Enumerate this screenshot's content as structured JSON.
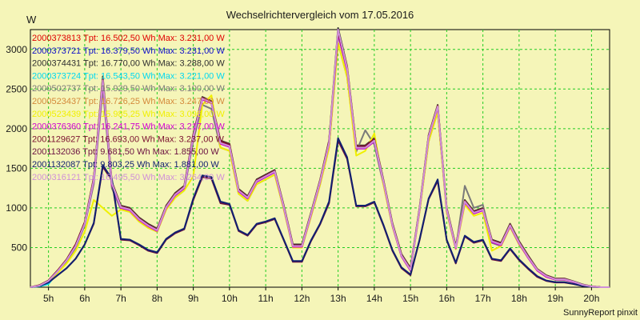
{
  "chart_data": {
    "type": "line",
    "title": "Wechselrichtervergleich vom 17.05.2016",
    "ylabel": "W",
    "xlabel": "",
    "ylim": [
      0,
      3250
    ],
    "xlim": [
      4.5,
      20.5
    ],
    "yticks": [
      500,
      1000,
      1500,
      2000,
      2500,
      3000
    ],
    "xticks": [
      {
        "value": 5,
        "label": "5h"
      },
      {
        "value": 6,
        "label": "6h"
      },
      {
        "value": 7,
        "label": "7h"
      },
      {
        "value": 8,
        "label": "8h"
      },
      {
        "value": 9,
        "label": "9h"
      },
      {
        "value": 10,
        "label": "10h"
      },
      {
        "value": 11,
        "label": "11h"
      },
      {
        "value": 12,
        "label": "12h"
      },
      {
        "value": 13,
        "label": "13h"
      },
      {
        "value": 14,
        "label": "14h"
      },
      {
        "value": 15,
        "label": "15h"
      },
      {
        "value": 16,
        "label": "16h"
      },
      {
        "value": 17,
        "label": "17h"
      },
      {
        "value": 18,
        "label": "18h"
      },
      {
        "value": 19,
        "label": "19h"
      },
      {
        "value": 20,
        "label": "20h"
      }
    ],
    "grid": true,
    "legend_position": "top-left",
    "footer": "SunnyReport pinxit",
    "x": [
      4.5,
      4.75,
      5.0,
      5.25,
      5.5,
      5.75,
      6.0,
      6.25,
      6.5,
      6.75,
      7.0,
      7.25,
      7.5,
      7.75,
      8.0,
      8.25,
      8.5,
      8.75,
      9.0,
      9.25,
      9.5,
      9.75,
      10.0,
      10.25,
      10.5,
      10.75,
      11.0,
      11.25,
      11.5,
      11.75,
      12.0,
      12.25,
      12.5,
      12.75,
      13.0,
      13.25,
      13.5,
      13.75,
      14.0,
      14.25,
      14.5,
      14.75,
      15.0,
      15.25,
      15.5,
      15.75,
      16.0,
      16.25,
      16.5,
      16.75,
      17.0,
      17.25,
      17.5,
      17.75,
      18.0,
      18.25,
      18.5,
      18.75,
      19.0,
      19.25,
      19.5,
      19.75,
      20.0,
      20.25,
      20.5
    ],
    "series": [
      {
        "name": "2000373813 Tpt: 16.502,50 Wh Max: 3.231,00 W",
        "color": "#e00000",
        "values": [
          0,
          20,
          80,
          200,
          340,
          520,
          800,
          1350,
          2600,
          1300,
          1010,
          980,
          860,
          780,
          720,
          1010,
          1170,
          1260,
          1900,
          2380,
          2330,
          1820,
          1780,
          1220,
          1130,
          1340,
          1400,
          1460,
          1010,
          520,
          520,
          920,
          1330,
          1820,
          3200,
          2750,
          1760,
          1760,
          1850,
          1340,
          790,
          400,
          220,
          980,
          1900,
          2280,
          980,
          500,
          1080,
          940,
          980,
          580,
          540,
          780,
          560,
          380,
          220,
          140,
          100,
          100,
          70,
          30,
          10,
          0,
          0
        ]
      },
      {
        "name": "2000373721 Tpt: 16.379,50 Wh Max: 3.231,00 W",
        "color": "#1010c8",
        "values": [
          0,
          20,
          80,
          200,
          340,
          520,
          800,
          1340,
          2580,
          1290,
          1000,
          970,
          850,
          770,
          710,
          1000,
          1160,
          1250,
          1890,
          2370,
          2320,
          1810,
          1770,
          1210,
          1120,
          1330,
          1390,
          1450,
          1000,
          510,
          510,
          910,
          1320,
          1810,
          3190,
          2740,
          1750,
          1750,
          1840,
          1330,
          780,
          390,
          210,
          970,
          1890,
          2270,
          970,
          490,
          1070,
          930,
          970,
          570,
          530,
          770,
          550,
          370,
          210,
          130,
          95,
          95,
          65,
          25,
          10,
          0,
          0
        ]
      },
      {
        "name": "2000374431 Tpt: 16.770,00 Wh Max: 3.288,00 W",
        "color": "#303030",
        "values": [
          0,
          25,
          85,
          210,
          350,
          540,
          820,
          1380,
          2660,
          1330,
          1030,
          1000,
          880,
          800,
          740,
          1030,
          1190,
          1280,
          1930,
          2400,
          2350,
          1850,
          1810,
          1240,
          1150,
          1360,
          1420,
          1480,
          1030,
          540,
          540,
          940,
          1350,
          1850,
          3270,
          2790,
          1790,
          1790,
          1880,
          1360,
          810,
          420,
          240,
          1000,
          1920,
          2300,
          1000,
          520,
          1100,
          960,
          1000,
          600,
          560,
          800,
          580,
          400,
          230,
          150,
          110,
          110,
          75,
          35,
          12,
          0,
          0
        ]
      },
      {
        "name": "2000373724 Tpt: 16.543,50 Wh Max: 3.221,00 W",
        "color": "#00d8f0",
        "values": [
          0,
          10,
          40,
          180,
          330,
          510,
          790,
          1340,
          2600,
          1300,
          1010,
          980,
          860,
          780,
          720,
          1010,
          1170,
          1260,
          1900,
          2380,
          2330,
          1820,
          1780,
          1220,
          1130,
          1340,
          1400,
          1460,
          1010,
          520,
          520,
          920,
          1330,
          1820,
          3200,
          2750,
          1760,
          1760,
          1850,
          1340,
          790,
          400,
          220,
          980,
          1900,
          2280,
          980,
          500,
          1080,
          940,
          980,
          580,
          540,
          780,
          560,
          380,
          220,
          140,
          100,
          100,
          70,
          30,
          10,
          0,
          0
        ]
      },
      {
        "name": "2000502737 Tpt: 15.929,50 Wh Max: 3.100,00 W",
        "color": "#7a7a7a",
        "values": [
          0,
          20,
          80,
          200,
          330,
          500,
          780,
          1300,
          2500,
          1250,
          980,
          950,
          830,
          750,
          700,
          980,
          1130,
          1220,
          1850,
          2300,
          2250,
          1760,
          1720,
          1180,
          1090,
          1300,
          1360,
          1420,
          980,
          500,
          500,
          890,
          1290,
          1760,
          3080,
          2650,
          1710,
          1980,
          1800,
          1300,
          770,
          390,
          210,
          950,
          1840,
          2210,
          950,
          480,
          1280,
          1000,
          1040,
          560,
          520,
          760,
          540,
          370,
          210,
          130,
          95,
          95,
          65,
          25,
          10,
          0,
          0
        ]
      },
      {
        "name": "2000523437 Tpt: 16.726,25 Wh Max: 3.247,00 W",
        "color": "#d4893a",
        "values": [
          0,
          25,
          85,
          210,
          350,
          540,
          820,
          1370,
          2640,
          1320,
          1020,
          990,
          870,
          790,
          730,
          1020,
          1180,
          1270,
          1920,
          2390,
          2340,
          1840,
          1800,
          1230,
          1140,
          1350,
          1410,
          1470,
          1020,
          530,
          530,
          930,
          1340,
          1840,
          3230,
          2780,
          1780,
          1780,
          1870,
          1350,
          800,
          410,
          230,
          990,
          1910,
          2290,
          990,
          510,
          1090,
          950,
          990,
          590,
          550,
          790,
          570,
          390,
          225,
          145,
          105,
          105,
          72,
          32,
          11,
          0,
          0
        ]
      },
      {
        "name": "2000523439 Tpt: 15.985,25 Wh Max: 3.096,00 W",
        "color": "#f0f000",
        "values": [
          0,
          20,
          70,
          180,
          300,
          460,
          700,
          1100,
          1000,
          900,
          980,
          950,
          830,
          750,
          700,
          980,
          1130,
          1220,
          1400,
          2300,
          2420,
          1760,
          1720,
          1180,
          1090,
          1300,
          1360,
          1420,
          980,
          500,
          500,
          890,
          1290,
          1760,
          3080,
          2650,
          1660,
          1720,
          1940,
          1300,
          770,
          390,
          210,
          950,
          1840,
          2210,
          950,
          480,
          1040,
          900,
          940,
          460,
          520,
          760,
          540,
          370,
          210,
          130,
          95,
          95,
          65,
          25,
          10,
          0,
          0
        ]
      },
      {
        "name": "2000376360 Tpt: 16.241,75 Wh Max: 3.217,00 W",
        "color": "#d000d0",
        "values": [
          0,
          20,
          80,
          200,
          340,
          520,
          800,
          1340,
          2590,
          1290,
          1000,
          970,
          850,
          770,
          710,
          1000,
          1160,
          1250,
          1890,
          2370,
          2320,
          1810,
          1770,
          1210,
          1120,
          1330,
          1390,
          1450,
          1000,
          510,
          510,
          910,
          1320,
          1810,
          3190,
          2740,
          1750,
          1750,
          1840,
          1330,
          780,
          390,
          210,
          970,
          1890,
          2270,
          970,
          490,
          1070,
          930,
          970,
          570,
          530,
          770,
          550,
          370,
          210,
          130,
          95,
          95,
          65,
          25,
          10,
          0,
          0
        ]
      },
      {
        "name": "2001129627 Tpt: 16.693,00 Wh Max: 3.237,00 W",
        "color": "#7a1030",
        "values": [
          0,
          25,
          85,
          210,
          350,
          540,
          820,
          1370,
          2630,
          1320,
          1020,
          990,
          870,
          790,
          730,
          1020,
          1180,
          1270,
          1920,
          2390,
          2340,
          1840,
          1800,
          1230,
          1140,
          1350,
          1410,
          1470,
          1020,
          530,
          530,
          930,
          1340,
          1840,
          3220,
          2770,
          1780,
          1780,
          1870,
          1350,
          800,
          410,
          230,
          990,
          1910,
          2290,
          990,
          510,
          1090,
          950,
          990,
          590,
          550,
          790,
          570,
          390,
          225,
          145,
          105,
          105,
          72,
          32,
          11,
          0,
          0
        ]
      },
      {
        "name": "2001132036 Tpt: 9.681,50 Wh Max: 1.855,00 W",
        "color": "#6a1040",
        "values": [
          0,
          15,
          60,
          150,
          240,
          360,
          540,
          800,
          1520,
          1350,
          600,
          590,
          530,
          460,
          430,
          600,
          680,
          730,
          1100,
          1390,
          1370,
          1060,
          1040,
          710,
          650,
          790,
          820,
          860,
          590,
          320,
          320,
          580,
          790,
          1060,
          1850,
          1620,
          1020,
          1020,
          1070,
          780,
          460,
          240,
          150,
          590,
          1110,
          1340,
          590,
          300,
          640,
          560,
          590,
          350,
          330,
          480,
          340,
          230,
          130,
          80,
          60,
          60,
          40,
          15,
          5,
          0,
          0
        ]
      },
      {
        "name": "2001132087 Tpt: 9.803,25 Wh Max: 1.881,00 W",
        "color": "#102070",
        "values": [
          0,
          15,
          60,
          150,
          240,
          360,
          540,
          810,
          1540,
          1370,
          610,
          600,
          540,
          470,
          440,
          610,
          690,
          740,
          1120,
          1410,
          1390,
          1080,
          1050,
          720,
          660,
          800,
          830,
          870,
          600,
          330,
          330,
          590,
          800,
          1080,
          1880,
          1640,
          1030,
          1030,
          1080,
          790,
          470,
          250,
          160,
          600,
          1120,
          1360,
          600,
          310,
          650,
          570,
          600,
          360,
          340,
          490,
          350,
          240,
          140,
          85,
          65,
          65,
          42,
          16,
          5,
          0,
          0
        ]
      },
      {
        "name": "2000316121 Tpt: 16.495,50 Wh Max: 3.264,00 W",
        "color": "#d090d8",
        "values": [
          0,
          20,
          80,
          200,
          340,
          520,
          800,
          1350,
          2610,
          1310,
          1010,
          980,
          860,
          780,
          720,
          1010,
          1170,
          1260,
          1900,
          2380,
          2330,
          1820,
          1780,
          1220,
          1130,
          1340,
          1400,
          1460,
          1010,
          520,
          520,
          920,
          1330,
          1820,
          3250,
          2760,
          1760,
          1760,
          1850,
          1340,
          790,
          400,
          220,
          980,
          1900,
          2280,
          980,
          500,
          1080,
          940,
          980,
          580,
          540,
          780,
          560,
          380,
          220,
          140,
          100,
          100,
          70,
          30,
          10,
          0,
          0
        ]
      }
    ]
  }
}
